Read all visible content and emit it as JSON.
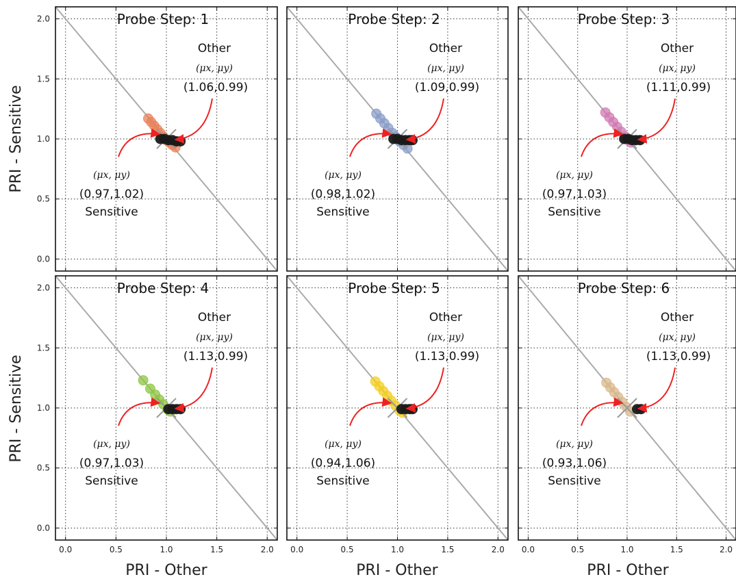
{
  "chart_data": {
    "type": "scatter",
    "xlabel": "PRI - Other",
    "ylabel": "PRI - Sensitive",
    "xlim": [
      -0.1,
      2.1
    ],
    "ylim": [
      -0.1,
      2.1
    ],
    "xticks": [
      "0.0",
      "0.5",
      "1.0",
      "1.5",
      "2.0"
    ],
    "yticks": [
      "0.0",
      "0.5",
      "1.0",
      "1.5",
      "2.0"
    ],
    "grid": true,
    "reference_line": "y = 2 - x",
    "panels": [
      {
        "title": "Probe Step: 1",
        "color": "#e8825a",
        "sensitive_points": [
          [
            0.82,
            1.17
          ],
          [
            0.85,
            1.14
          ],
          [
            0.88,
            1.11
          ],
          [
            0.91,
            1.08
          ],
          [
            0.94,
            1.05
          ],
          [
            0.97,
            1.02
          ],
          [
            1.0,
            0.99
          ],
          [
            1.03,
            0.97
          ],
          [
            1.06,
            0.95
          ],
          [
            1.09,
            0.93
          ]
        ],
        "other_points": [
          [
            0.94,
            1.0
          ],
          [
            0.98,
            1.0
          ],
          [
            1.02,
            0.99
          ],
          [
            1.06,
            0.99
          ],
          [
            1.1,
            0.98
          ],
          [
            1.14,
            0.98
          ]
        ],
        "sensitive_mean": [
          0.97,
          1.02
        ],
        "other_mean": [
          1.06,
          0.99
        ],
        "sensitive_symbol": "(μx, μy)",
        "other_symbol": "(μx, μy)",
        "sensitive_text": "(0.97,1.02)",
        "other_text": "(1.06,0.99)",
        "sensitive_label": "Sensitive",
        "other_label": "Other"
      },
      {
        "title": "Probe Step: 2",
        "color": "#8a9cc8",
        "sensitive_points": [
          [
            0.79,
            1.21
          ],
          [
            0.83,
            1.17
          ],
          [
            0.87,
            1.13
          ],
          [
            0.91,
            1.09
          ],
          [
            0.95,
            1.05
          ],
          [
            0.98,
            1.02
          ],
          [
            1.02,
            0.98
          ],
          [
            1.06,
            0.95
          ],
          [
            1.1,
            0.92
          ]
        ],
        "other_points": [
          [
            0.96,
            1.0
          ],
          [
            1.0,
            1.0
          ],
          [
            1.04,
            0.99
          ],
          [
            1.08,
            0.99
          ],
          [
            1.12,
            0.99
          ],
          [
            1.15,
            0.99
          ]
        ],
        "sensitive_mean": [
          0.98,
          1.02
        ],
        "other_mean": [
          1.09,
          0.99
        ],
        "sensitive_symbol": "(μx, μy)",
        "other_symbol": "(μx, μy)",
        "sensitive_text": "(0.98,1.02)",
        "other_text": "(1.09,0.99)",
        "sensitive_label": "Sensitive",
        "other_label": "Other"
      },
      {
        "title": "Probe Step: 3",
        "color": "#d27ab4",
        "sensitive_points": [
          [
            0.78,
            1.22
          ],
          [
            0.82,
            1.18
          ],
          [
            0.86,
            1.14
          ],
          [
            0.9,
            1.1
          ],
          [
            0.94,
            1.06
          ],
          [
            0.98,
            1.02
          ],
          [
            1.01,
            0.99
          ],
          [
            1.04,
            0.97
          ]
        ],
        "other_points": [
          [
            0.97,
            1.0
          ],
          [
            1.01,
            1.0
          ],
          [
            1.05,
            0.99
          ],
          [
            1.09,
            0.99
          ],
          [
            1.13,
            0.99
          ]
        ],
        "sensitive_mean": [
          0.97,
          1.03
        ],
        "other_mean": [
          1.11,
          0.99
        ],
        "sensitive_symbol": "(μx, μy)",
        "other_symbol": "(μx, μy)",
        "sensitive_text": "(0.97,1.03)",
        "other_text": "(1.11,0.99)",
        "sensitive_label": "Sensitive",
        "other_label": "Other"
      },
      {
        "title": "Probe Step: 4",
        "color": "#8cc63f",
        "sensitive_points": [
          [
            0.77,
            1.23
          ],
          [
            0.84,
            1.16
          ],
          [
            0.89,
            1.11
          ],
          [
            0.93,
            1.07
          ],
          [
            0.97,
            1.03
          ],
          [
            1.01,
            0.99
          ],
          [
            1.04,
            0.97
          ]
        ],
        "other_points": [
          [
            1.02,
            0.99
          ],
          [
            1.06,
            0.99
          ],
          [
            1.1,
            0.99
          ],
          [
            1.14,
            0.99
          ]
        ],
        "sensitive_mean": [
          0.97,
          1.03
        ],
        "other_mean": [
          1.13,
          0.99
        ],
        "sensitive_symbol": "(μx, μy)",
        "other_symbol": "(μx, μy)",
        "sensitive_text": "(0.97,1.03)",
        "other_text": "(1.13,0.99)",
        "sensitive_label": "Sensitive",
        "other_label": "Other"
      },
      {
        "title": "Probe Step: 5",
        "color": "#f2cf1f",
        "sensitive_points": [
          [
            0.78,
            1.22
          ],
          [
            0.82,
            1.18
          ],
          [
            0.86,
            1.14
          ],
          [
            0.9,
            1.1
          ],
          [
            0.94,
            1.06
          ],
          [
            0.98,
            1.02
          ],
          [
            1.02,
            0.98
          ],
          [
            1.05,
            0.96
          ]
        ],
        "other_points": [
          [
            1.04,
            0.99
          ],
          [
            1.08,
            0.99
          ],
          [
            1.12,
            0.99
          ],
          [
            1.15,
            0.99
          ]
        ],
        "sensitive_mean": [
          0.94,
          1.06
        ],
        "other_mean": [
          1.13,
          0.99
        ],
        "sensitive_symbol": "(μx, μy)",
        "other_symbol": "(μx, μy)",
        "sensitive_text": "(0.94,1.06)",
        "other_text": "(1.13,0.99)",
        "sensitive_label": "Sensitive",
        "other_label": "Other"
      },
      {
        "title": "Probe Step: 6",
        "color": "#d9b88c",
        "sensitive_points": [
          [
            0.79,
            1.21
          ],
          [
            0.83,
            1.17
          ],
          [
            0.87,
            1.13
          ],
          [
            0.91,
            1.09
          ],
          [
            0.95,
            1.05
          ],
          [
            0.99,
            1.01
          ],
          [
            1.03,
            0.97
          ]
        ],
        "other_points": [
          [
            1.1,
            0.99
          ],
          [
            1.14,
            0.99
          ]
        ],
        "sensitive_mean": [
          0.93,
          1.06
        ],
        "other_mean": [
          1.13,
          0.99
        ],
        "sensitive_symbol": "(μx, μy)",
        "other_symbol": "(μx, μy)",
        "sensitive_text": "(0.93,1.06)",
        "other_text": "(1.13,0.99)",
        "sensitive_label": "Sensitive",
        "other_label": "Other"
      }
    ]
  }
}
